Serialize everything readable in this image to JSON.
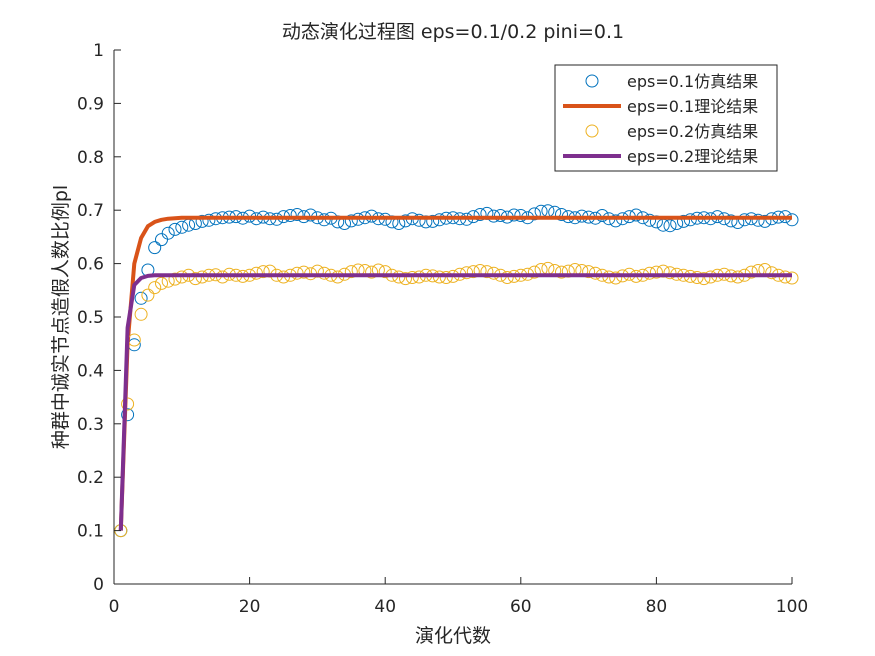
{
  "chart_data": {
    "type": "scatter",
    "title": "动态演化过程图 eps=0.1/0.2 pini=0.1",
    "xlabel": "演化代数",
    "ylabel": "种群中诚实节点造假人数比例pl",
    "xlim": [
      0,
      100
    ],
    "ylim": [
      0,
      1
    ],
    "xticks": [
      "0",
      "20",
      "40",
      "60",
      "80",
      "100"
    ],
    "yticks": [
      "0",
      "0.1",
      "0.2",
      "0.3",
      "0.4",
      "0.5",
      "0.6",
      "0.7",
      "0.8",
      "0.9",
      "1"
    ],
    "xtick_values": [
      0,
      20,
      40,
      60,
      80,
      100
    ],
    "ytick_values": [
      0,
      0.1,
      0.2,
      0.3,
      0.4,
      0.5,
      0.6,
      0.7,
      0.8,
      0.9,
      1
    ],
    "grid": false,
    "legend_position": "top-right",
    "series": [
      {
        "name": "eps=0.1仿真结果",
        "kind": "markers",
        "color": "#0072BD",
        "x": [
          1,
          2,
          3,
          4,
          5,
          6,
          7,
          8,
          9,
          10,
          11,
          12,
          13,
          14,
          15,
          16,
          17,
          18,
          19,
          20,
          21,
          22,
          23,
          24,
          25,
          26,
          27,
          28,
          29,
          30,
          31,
          32,
          33,
          34,
          35,
          36,
          37,
          38,
          39,
          40,
          41,
          42,
          43,
          44,
          45,
          46,
          47,
          48,
          49,
          50,
          51,
          52,
          53,
          54,
          55,
          56,
          57,
          58,
          59,
          60,
          61,
          62,
          63,
          64,
          65,
          66,
          67,
          68,
          69,
          70,
          71,
          72,
          73,
          74,
          75,
          76,
          77,
          78,
          79,
          80,
          81,
          82,
          83,
          84,
          85,
          86,
          87,
          88,
          89,
          90,
          91,
          92,
          93,
          94,
          95,
          96,
          97,
          98,
          99,
          100
        ],
        "y": [
          0.1,
          0.317,
          0.448,
          0.535,
          0.588,
          0.63,
          0.645,
          0.657,
          0.664,
          0.668,
          0.672,
          0.675,
          0.679,
          0.681,
          0.684,
          0.686,
          0.687,
          0.688,
          0.685,
          0.689,
          0.684,
          0.687,
          0.684,
          0.683,
          0.688,
          0.69,
          0.692,
          0.688,
          0.691,
          0.686,
          0.682,
          0.685,
          0.678,
          0.675,
          0.68,
          0.683,
          0.686,
          0.689,
          0.684,
          0.683,
          0.678,
          0.675,
          0.68,
          0.684,
          0.681,
          0.678,
          0.679,
          0.682,
          0.685,
          0.686,
          0.684,
          0.683,
          0.688,
          0.692,
          0.694,
          0.689,
          0.69,
          0.687,
          0.691,
          0.69,
          0.686,
          0.693,
          0.698,
          0.699,
          0.696,
          0.692,
          0.688,
          0.686,
          0.689,
          0.687,
          0.685,
          0.69,
          0.684,
          0.68,
          0.684,
          0.688,
          0.691,
          0.686,
          0.681,
          0.678,
          0.672,
          0.671,
          0.675,
          0.679,
          0.682,
          0.685,
          0.686,
          0.684,
          0.688,
          0.684,
          0.68,
          0.677,
          0.682,
          0.684,
          0.681,
          0.679,
          0.684,
          0.687,
          0.688,
          0.682
        ]
      },
      {
        "name": "eps=0.1理论结果",
        "kind": "line",
        "color": "#D95319",
        "x": [
          1,
          2,
          3,
          4,
          5,
          6,
          7,
          8,
          9,
          10,
          12,
          15,
          20,
          30,
          40,
          50,
          60,
          70,
          80,
          90,
          100
        ],
        "y": [
          0.1,
          0.45,
          0.6,
          0.648,
          0.67,
          0.678,
          0.682,
          0.684,
          0.685,
          0.686,
          0.686,
          0.686,
          0.686,
          0.686,
          0.686,
          0.686,
          0.686,
          0.686,
          0.686,
          0.686,
          0.686
        ]
      },
      {
        "name": "eps=0.2仿真结果",
        "kind": "markers",
        "color": "#EDB120",
        "x": [
          1,
          2,
          3,
          4,
          5,
          6,
          7,
          8,
          9,
          10,
          11,
          12,
          13,
          14,
          15,
          16,
          17,
          18,
          19,
          20,
          21,
          22,
          23,
          24,
          25,
          26,
          27,
          28,
          29,
          30,
          31,
          32,
          33,
          34,
          35,
          36,
          37,
          38,
          39,
          40,
          41,
          42,
          43,
          44,
          45,
          46,
          47,
          48,
          49,
          50,
          51,
          52,
          53,
          54,
          55,
          56,
          57,
          58,
          59,
          60,
          61,
          62,
          63,
          64,
          65,
          66,
          67,
          68,
          69,
          70,
          71,
          72,
          73,
          74,
          75,
          76,
          77,
          78,
          79,
          80,
          81,
          82,
          83,
          84,
          85,
          86,
          87,
          88,
          89,
          90,
          91,
          92,
          93,
          94,
          95,
          96,
          97,
          98,
          99,
          100
        ],
        "y": [
          0.1,
          0.337,
          0.457,
          0.505,
          0.541,
          0.555,
          0.563,
          0.567,
          0.571,
          0.575,
          0.578,
          0.572,
          0.575,
          0.578,
          0.579,
          0.575,
          0.58,
          0.578,
          0.576,
          0.578,
          0.582,
          0.585,
          0.586,
          0.578,
          0.575,
          0.578,
          0.582,
          0.584,
          0.581,
          0.586,
          0.582,
          0.578,
          0.575,
          0.58,
          0.585,
          0.588,
          0.587,
          0.584,
          0.588,
          0.585,
          0.578,
          0.575,
          0.572,
          0.574,
          0.575,
          0.578,
          0.577,
          0.575,
          0.574,
          0.576,
          0.58,
          0.583,
          0.585,
          0.587,
          0.585,
          0.582,
          0.578,
          0.574,
          0.576,
          0.578,
          0.58,
          0.584,
          0.589,
          0.591,
          0.587,
          0.584,
          0.586,
          0.589,
          0.587,
          0.585,
          0.582,
          0.578,
          0.575,
          0.573,
          0.577,
          0.58,
          0.576,
          0.578,
          0.582,
          0.584,
          0.586,
          0.583,
          0.58,
          0.578,
          0.576,
          0.574,
          0.572,
          0.575,
          0.578,
          0.58,
          0.577,
          0.575,
          0.578,
          0.584,
          0.587,
          0.589,
          0.583,
          0.578,
          0.575,
          0.573
        ]
      },
      {
        "name": "eps=0.2理论结果",
        "kind": "line",
        "color": "#7E2F8E",
        "x": [
          1,
          2,
          3,
          4,
          5,
          6,
          7,
          8,
          10,
          15,
          20,
          30,
          40,
          50,
          60,
          70,
          80,
          90,
          100
        ],
        "y": [
          0.1,
          0.48,
          0.56,
          0.573,
          0.577,
          0.578,
          0.578,
          0.578,
          0.578,
          0.578,
          0.578,
          0.578,
          0.578,
          0.578,
          0.578,
          0.578,
          0.578,
          0.578,
          0.578
        ]
      }
    ]
  }
}
